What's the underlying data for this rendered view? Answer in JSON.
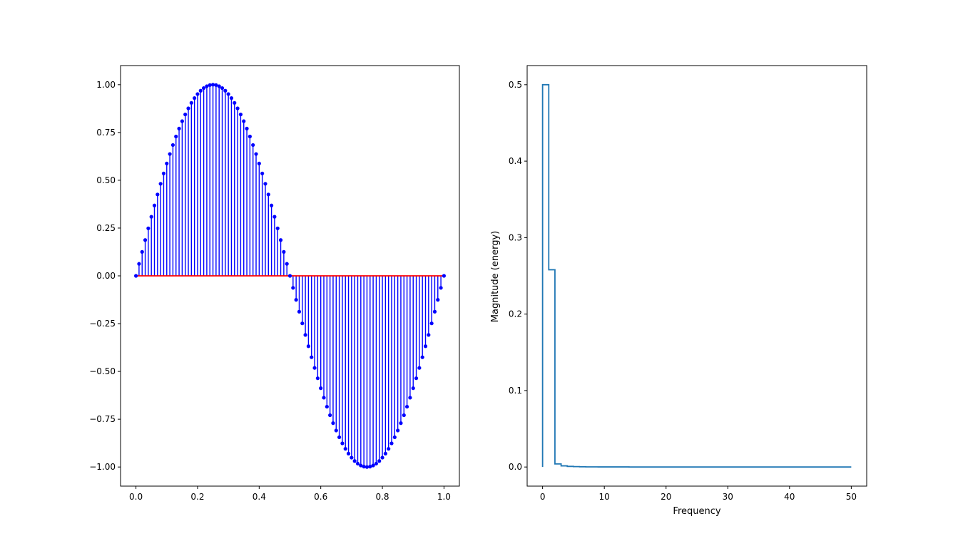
{
  "chart_data": [
    {
      "type": "stem",
      "title": "",
      "xlabel": "",
      "ylabel": "",
      "xlim": [
        -0.05,
        1.05
      ],
      "ylim": [
        -1.1,
        1.1
      ],
      "xticks": [
        0.0,
        0.2,
        0.4,
        0.6,
        0.8,
        1.0
      ],
      "xtick_labels": [
        "0.0",
        "0.2",
        "0.4",
        "0.6",
        "0.8",
        "1.0"
      ],
      "yticks": [
        1.0,
        0.75,
        0.5,
        0.25,
        0.0,
        -0.25,
        -0.5,
        -0.75,
        -1.0
      ],
      "ytick_labels": [
        "1.00",
        "0.75",
        "0.50",
        "0.25",
        "0.00",
        "−0.25",
        "−0.50",
        "−0.75",
        "−1.00"
      ],
      "series": [
        {
          "x_start": 0.0,
          "x_end": 1.0,
          "num_points": 101,
          "function": "sin(2*pi*x)",
          "marker_color": "#0000ff",
          "stem_color": "#0000ff",
          "baseline_color": "#ff0000",
          "baseline": 0.0
        }
      ],
      "grid": false,
      "legend": "none"
    },
    {
      "type": "line",
      "drawstyle": "steps",
      "title": "",
      "xlabel": "Frequency",
      "ylabel": "Magnitude (energy)",
      "xlim": [
        -2.5,
        52.5
      ],
      "ylim": [
        -0.025,
        0.525
      ],
      "xticks": [
        0,
        10,
        20,
        30,
        40,
        50
      ],
      "xtick_labels": [
        "0",
        "10",
        "20",
        "30",
        "40",
        "50"
      ],
      "yticks": [
        0.0,
        0.1,
        0.2,
        0.3,
        0.4,
        0.5
      ],
      "ytick_labels": [
        "0.0",
        "0.1",
        "0.2",
        "0.3",
        "0.4",
        "0.5"
      ],
      "series": [
        {
          "color": "#1f77b4",
          "x": [
            0,
            1,
            2,
            3,
            4,
            5,
            6,
            7,
            8,
            9,
            10,
            11,
            12,
            13,
            14,
            15,
            16,
            17,
            18,
            19,
            20,
            21,
            22,
            23,
            24,
            25,
            26,
            27,
            28,
            29,
            30,
            31,
            32,
            33,
            34,
            35,
            36,
            37,
            38,
            39,
            40,
            41,
            42,
            43,
            44,
            45,
            46,
            47,
            48,
            49,
            50
          ],
          "y": [
            0.0,
            0.5,
            0.258,
            0.004,
            0.0015,
            0.0008,
            0.0005,
            0.0003,
            0.0002,
            0.0002,
            0.0001,
            0.0001,
            0.0001,
            0.0001,
            0.0001,
            0.0,
            0.0,
            0.0,
            0.0,
            0.0,
            0.0,
            0.0,
            0.0,
            0.0,
            0.0,
            0.0,
            0.0,
            0.0,
            0.0,
            0.0,
            0.0,
            0.0,
            0.0,
            0.0,
            0.0,
            0.0,
            0.0,
            0.0,
            0.0,
            0.0,
            0.0,
            0.0,
            0.0,
            0.0,
            0.0,
            0.0,
            0.0,
            0.0,
            0.0,
            0.0,
            0.0
          ]
        }
      ],
      "grid": false,
      "legend": "none"
    }
  ]
}
